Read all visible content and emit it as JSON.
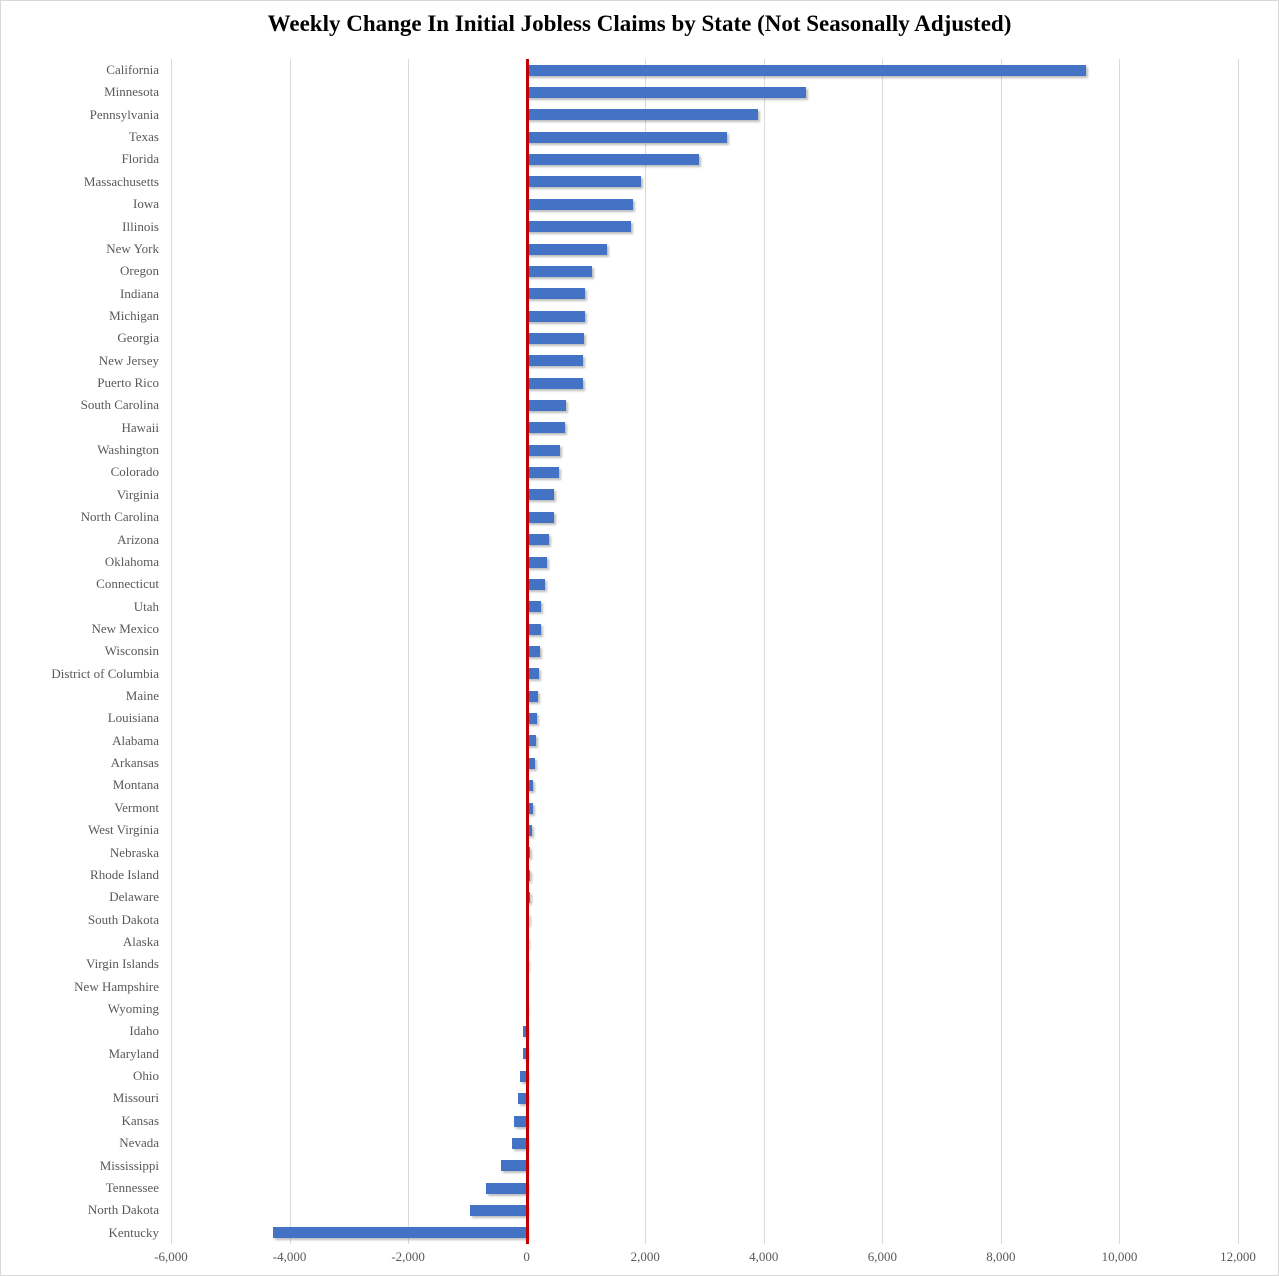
{
  "chart_data": {
    "type": "bar",
    "orientation": "horizontal",
    "title": "Weekly Change In Initial Jobless Claims by State (Not Seasonally Adjusted)",
    "categories": [
      "California",
      "Minnesota",
      "Pennsylvania",
      "Texas",
      "Florida",
      "Massachusetts",
      "Iowa",
      "Illinois",
      "New York",
      "Oregon",
      "Indiana",
      "Michigan",
      "Georgia",
      "New Jersey",
      "Puerto Rico",
      "South Carolina",
      "Hawaii",
      "Washington",
      "Colorado",
      "Virginia",
      "North Carolina",
      "Arizona",
      "Oklahoma",
      "Connecticut",
      "Utah",
      "New Mexico",
      "Wisconsin",
      "District of Columbia",
      "Maine",
      "Louisiana",
      "Alabama",
      "Arkansas",
      "Montana",
      "Vermont",
      "West Virginia",
      "Nebraska",
      "Rhode Island",
      "Delaware",
      "South Dakota",
      "Alaska",
      "Virgin Islands",
      "New Hampshire",
      "Wyoming",
      "Idaho",
      "Maryland",
      "Ohio",
      "Missouri",
      "Kansas",
      "Nevada",
      "Mississippi",
      "Tennessee",
      "North Dakota",
      "Kentucky"
    ],
    "values": [
      9440,
      4720,
      3900,
      3380,
      2900,
      1930,
      1800,
      1760,
      1350,
      1110,
      990,
      980,
      960,
      950,
      945,
      670,
      650,
      560,
      540,
      460,
      455,
      380,
      345,
      310,
      250,
      240,
      230,
      210,
      190,
      175,
      160,
      140,
      110,
      100,
      85,
      60,
      55,
      50,
      35,
      15,
      5,
      0,
      -10,
      -55,
      -65,
      -110,
      -150,
      -210,
      -240,
      -430,
      -690,
      -950,
      -4280
    ],
    "xlabel": "",
    "ylabel": "",
    "xlim": [
      -6000,
      12000
    ],
    "x_tick_step": 2000,
    "x_tick_labels": [
      "-6,000",
      "-4,000",
      "-2,000",
      "0",
      "2,000",
      "4,000",
      "6,000",
      "8,000",
      "10,000",
      "12,000"
    ],
    "grid": "vertical-only",
    "legend": "none",
    "bar_color": "#4472C4",
    "zero_line_color": "#C00000",
    "gridline_color": "#D9D9D9",
    "label_color": "#595959"
  }
}
